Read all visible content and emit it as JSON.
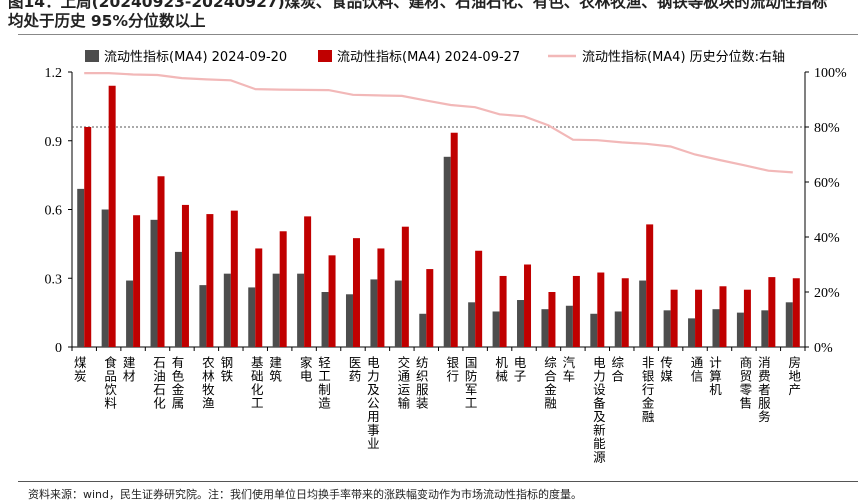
{
  "title": {
    "line1": "图14：上周(20240923-20240927)煤炭、食品饮料、建材、石油石化、有色、农林牧渔、钢铁等板块的流动性指标",
    "line2": "均处于历史 95%分位数以上"
  },
  "footnote": "资料来源：wind，民生证券研究院。注：我们使用单位日均换手率带来的涨跌幅变动作为市场流动性指标的度量。",
  "chart_data": {
    "type": "bar",
    "categories": [
      "煤炭",
      "食品饮料",
      "建材",
      "石油石化",
      "有色金属",
      "农林牧渔",
      "钢铁",
      "基础化工",
      "建筑",
      "家电",
      "轻工制造",
      "医药",
      "电力及公用事业",
      "交通运输",
      "纺织服装",
      "银行",
      "国防军工",
      "机械",
      "电子",
      "综合金融",
      "汽车",
      "电力设备及新能源",
      "综合",
      "非银行金融",
      "传媒",
      "通信",
      "计算机",
      "商贸零售",
      "消费者服务",
      "房地产"
    ],
    "series": [
      {
        "name": "流动性指标(MA4) 2024-09-20",
        "type": "bar",
        "axis": "left",
        "color": "#4d4d4d",
        "values": [
          0.69,
          0.6,
          0.29,
          0.555,
          0.415,
          0.27,
          0.32,
          0.26,
          0.32,
          0.32,
          0.24,
          0.23,
          0.295,
          0.29,
          0.145,
          0.83,
          0.195,
          0.155,
          0.205,
          0.165,
          0.18,
          0.145,
          0.155,
          0.29,
          0.16,
          0.125,
          0.165,
          0.15,
          0.16,
          0.195
        ]
      },
      {
        "name": "流动性指标(MA4) 2024-09-27",
        "type": "bar",
        "axis": "left",
        "color": "#c00000",
        "values": [
          0.96,
          1.14,
          0.575,
          0.745,
          0.62,
          0.58,
          0.595,
          0.43,
          0.505,
          0.57,
          0.4,
          0.475,
          0.43,
          0.525,
          0.34,
          0.935,
          0.42,
          0.31,
          0.36,
          0.24,
          0.31,
          0.325,
          0.3,
          0.535,
          0.25,
          0.25,
          0.265,
          0.25,
          0.305,
          0.3
        ]
      },
      {
        "name": "流动性指标(MA4) 历史分位数:右轴",
        "type": "line",
        "axis": "right",
        "color": "#f2b8b8",
        "values": [
          99.6,
          99.6,
          99.1,
          98.9,
          97.8,
          97.3,
          97.0,
          93.8,
          93.6,
          93.5,
          93.4,
          91.7,
          91.5,
          91.3,
          89.6,
          88.0,
          87.2,
          84.6,
          83.9,
          80.6,
          75.4,
          75.2,
          74.4,
          73.9,
          72.9,
          70.0,
          68.0,
          66.1,
          64.1,
          63.5
        ]
      }
    ],
    "y_left": {
      "min": 0,
      "max": 1.2,
      "ticks": [
        "0",
        "0.3",
        "0.6",
        "0.9",
        "1.2"
      ]
    },
    "y_right": {
      "min": 0,
      "max": 100,
      "ticks": [
        "0%",
        "20%",
        "40%",
        "60%",
        "80%",
        "100%"
      ]
    },
    "reference_line": 80,
    "grid": false,
    "legend_position": "top"
  }
}
